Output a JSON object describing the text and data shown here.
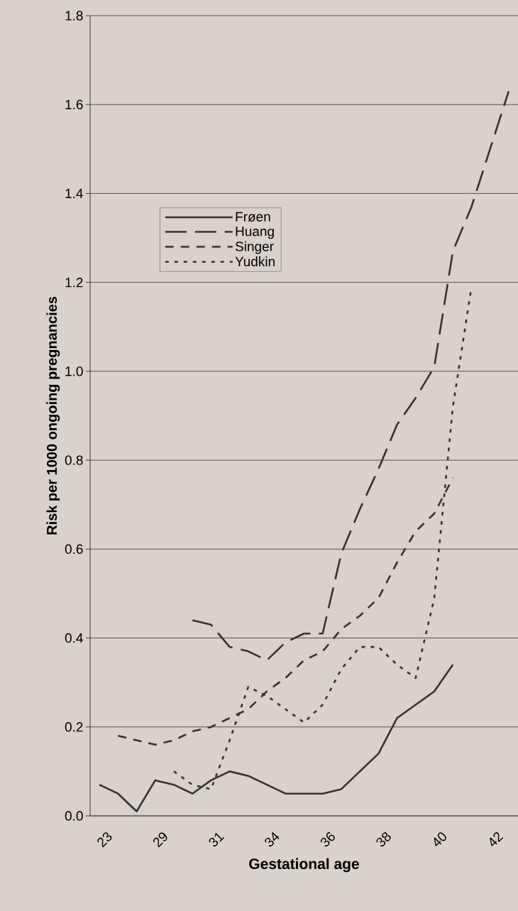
{
  "chart_data": {
    "type": "line",
    "xlabel": "Gestational age",
    "ylabel": "Risk per 1000 ongoing pregnancies",
    "categories": [
      "23",
      null,
      null,
      "29",
      null,
      null,
      "31",
      null,
      null,
      "34",
      null,
      null,
      "36",
      null,
      null,
      "38",
      null,
      null,
      "40",
      null,
      null,
      "42",
      null
    ],
    "ylim": [
      0,
      1.8
    ],
    "yticks": [
      {
        "value": 0,
        "label": "0.0"
      },
      {
        "value": 0.2,
        "label": "0.2"
      },
      {
        "value": 0.4,
        "label": "0.4"
      },
      {
        "value": 0.6,
        "label": "0.6"
      },
      {
        "value": 0.8,
        "label": "0.8"
      },
      {
        "value": 1.0,
        "label": "1.0"
      },
      {
        "value": 1.2,
        "label": "1.2"
      },
      {
        "value": 1.4,
        "label": "1.4"
      },
      {
        "value": 1.6,
        "label": "1.6"
      },
      {
        "value": 1.8,
        "label": "1.8"
      }
    ],
    "grid": "y",
    "legend": "top left",
    "marker": "none",
    "series": [
      {
        "name": "Frøen",
        "color": "#333333",
        "line_style": "solid",
        "values": [
          0.07,
          0.05,
          0.01,
          0.08,
          0.07,
          0.05,
          0.08,
          0.1,
          0.09,
          0.07,
          0.05,
          0.05,
          0.05,
          0.06,
          0.1,
          0.14,
          0.22,
          0.25,
          0.28,
          0.34,
          null,
          null,
          null
        ]
      },
      {
        "name": "Huang",
        "color": "#333333",
        "line_style": "dashed",
        "values": [
          null,
          null,
          null,
          null,
          null,
          0.44,
          0.43,
          0.38,
          0.37,
          0.35,
          0.39,
          0.41,
          0.41,
          0.59,
          0.69,
          0.78,
          0.88,
          0.94,
          1.01,
          1.27,
          1.37,
          1.5,
          1.63
        ]
      },
      {
        "name": "Singer",
        "color": "#333333",
        "line_style": "dashed",
        "values": [
          null,
          0.18,
          0.17,
          0.16,
          0.17,
          0.19,
          0.2,
          0.22,
          0.24,
          0.28,
          0.31,
          0.35,
          0.37,
          0.42,
          0.45,
          0.49,
          0.57,
          0.64,
          0.68,
          0.76,
          null,
          null,
          null
        ]
      },
      {
        "name": "Yudkin",
        "color": "#333333",
        "line_style": "dotted",
        "values": [
          null,
          null,
          null,
          null,
          0.1,
          0.07,
          0.06,
          0.17,
          0.29,
          0.27,
          0.24,
          0.21,
          0.25,
          0.33,
          0.38,
          0.38,
          0.34,
          0.31,
          0.49,
          0.92,
          1.19,
          null,
          null
        ]
      }
    ]
  }
}
